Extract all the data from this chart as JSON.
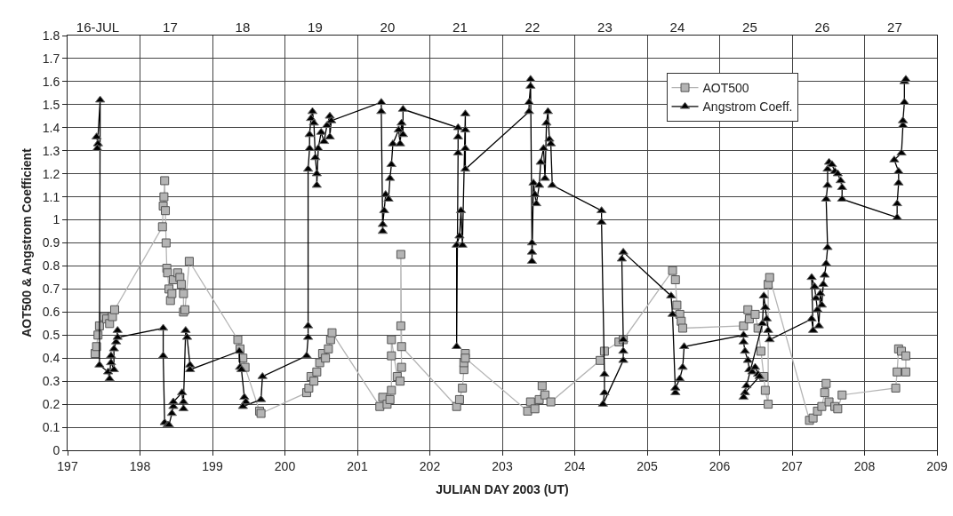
{
  "chart_data": {
    "type": "line",
    "xlabel": "JULIAN DAY 2003 (UT)",
    "ylabel": "AOT500 & Angstrom Coefficient",
    "xlim": [
      197,
      209
    ],
    "xticks": [
      197,
      198,
      199,
      200,
      201,
      202,
      203,
      204,
      205,
      206,
      207,
      208,
      209
    ],
    "x2lim": [
      "--07-16T00:00",
      "--07-28T00:00"
    ],
    "x2ticks": [
      {
        "value": "--07-16T10:00",
        "label": "16-JUL"
      },
      {
        "value": "--07-17T10:00",
        "label": "17"
      },
      {
        "value": "--07-18T10:00",
        "label": "18"
      },
      {
        "value": "--07-19T10:00",
        "label": "19"
      },
      {
        "value": "--07-20T10:00",
        "label": "20"
      },
      {
        "value": "--07-21T10:00",
        "label": "21"
      },
      {
        "value": "--07-22T10:00",
        "label": "22"
      },
      {
        "value": "--07-23T10:00",
        "label": "23"
      },
      {
        "value": "--07-24T10:00",
        "label": "24"
      },
      {
        "value": "--07-25T10:00",
        "label": "25"
      },
      {
        "value": "--07-26T10:00",
        "label": "26"
      },
      {
        "value": "--07-27T10:00",
        "label": "27"
      }
    ],
    "ylim": [
      0,
      1.8
    ],
    "yticks": [
      0,
      0.1,
      0.2,
      0.3,
      0.4,
      0.5,
      0.6,
      0.7,
      0.8,
      0.9,
      1,
      1.1,
      1.2,
      1.3,
      1.4,
      1.5,
      1.6,
      1.7,
      1.8
    ],
    "grid": true,
    "legend": "top right",
    "line_style": "solid",
    "series": [
      {
        "name": "AOT500",
        "color": "#b4b4b4",
        "marker": "square",
        "x": [
          197.38,
          197.4,
          197.42,
          197.44,
          197.5,
          197.54,
          197.58,
          197.62,
          197.65,
          198.31,
          198.32,
          198.33,
          198.34,
          198.35,
          198.36,
          198.37,
          198.38,
          198.4,
          198.42,
          198.44,
          198.46,
          198.52,
          198.55,
          198.57,
          198.6,
          198.6,
          198.62,
          198.68,
          199.35,
          199.38,
          199.42,
          199.45,
          199.65,
          199.67,
          200.3,
          200.33,
          200.36,
          200.4,
          200.44,
          200.48,
          200.52,
          200.56,
          200.6,
          200.63,
          200.65,
          201.31,
          201.35,
          201.41,
          201.45,
          201.47,
          201.47,
          201.47,
          201.55,
          201.59,
          201.61,
          201.6,
          201.6,
          201.61,
          202.37,
          202.41,
          202.45,
          202.47,
          202.47,
          202.49,
          202.49,
          203.35,
          203.39,
          203.45,
          203.51,
          203.55,
          203.59,
          203.67,
          204.35,
          204.41,
          204.61,
          204.67,
          205.35,
          205.39,
          205.41,
          205.45,
          205.47,
          205.49,
          206.33,
          206.39,
          206.41,
          206.49,
          206.53,
          206.57,
          206.61,
          206.63,
          206.67,
          206.67,
          206.69,
          207.24,
          207.29,
          207.35,
          207.41,
          207.45,
          207.47,
          207.51,
          207.59,
          207.63,
          207.69,
          208.43,
          208.45,
          208.47,
          208.51,
          208.57,
          208.57
        ],
        "values": [
          0.42,
          0.45,
          0.5,
          0.54,
          0.58,
          0.57,
          0.55,
          0.58,
          0.61,
          0.97,
          1.06,
          1.1,
          1.17,
          1.04,
          0.9,
          0.79,
          0.77,
          0.7,
          0.65,
          0.68,
          0.74,
          0.77,
          0.75,
          0.72,
          0.68,
          0.6,
          0.61,
          0.82,
          0.48,
          0.44,
          0.4,
          0.36,
          0.17,
          0.16,
          0.25,
          0.27,
          0.32,
          0.3,
          0.34,
          0.38,
          0.42,
          0.4,
          0.44,
          0.48,
          0.51,
          0.19,
          0.23,
          0.2,
          0.22,
          0.26,
          0.41,
          0.48,
          0.32,
          0.3,
          0.36,
          0.54,
          0.85,
          0.45,
          0.19,
          0.22,
          0.27,
          0.35,
          0.38,
          0.42,
          0.4,
          0.17,
          0.21,
          0.18,
          0.22,
          0.28,
          0.24,
          0.21,
          0.39,
          0.43,
          0.47,
          0.48,
          0.78,
          0.74,
          0.63,
          0.59,
          0.56,
          0.53,
          0.54,
          0.61,
          0.57,
          0.59,
          0.53,
          0.43,
          0.32,
          0.26,
          0.2,
          0.72,
          0.75,
          0.13,
          0.14,
          0.17,
          0.19,
          0.25,
          0.29,
          0.21,
          0.19,
          0.18,
          0.24,
          0.27,
          0.34,
          0.44,
          0.43,
          0.41,
          0.34
        ]
      },
      {
        "name": "Angstrom Coeff.",
        "color": "#000000",
        "marker": "triangle",
        "x": [
          197.4,
          197.42,
          197.41,
          197.45,
          197.44,
          197.56,
          197.58,
          197.6,
          197.6,
          197.64,
          197.64,
          197.67,
          197.69,
          197.69,
          198.32,
          198.32,
          198.34,
          198.38,
          198.4,
          198.44,
          198.46,
          198.46,
          198.58,
          198.6,
          198.6,
          198.63,
          198.65,
          198.69,
          198.69,
          199.37,
          199.38,
          199.4,
          199.44,
          199.46,
          199.42,
          199.67,
          199.69,
          200.3,
          200.32,
          200.32,
          200.32,
          200.34,
          200.34,
          200.36,
          200.38,
          200.4,
          200.42,
          200.44,
          200.44,
          200.46,
          200.5,
          200.54,
          200.58,
          200.62,
          200.62,
          200.64,
          201.33,
          201.33,
          201.35,
          201.35,
          201.37,
          201.39,
          201.43,
          201.45,
          201.47,
          201.49,
          201.57,
          201.59,
          201.61,
          201.63,
          201.63,
          202.39,
          202.39,
          202.39,
          202.37,
          202.37,
          202.41,
          202.43,
          202.45,
          202.49,
          202.49,
          202.49,
          202.49,
          203.37,
          203.37,
          203.39,
          203.39,
          203.41,
          203.41,
          203.41,
          203.43,
          203.45,
          203.47,
          203.51,
          203.53,
          203.57,
          203.59,
          203.61,
          203.63,
          203.65,
          203.67,
          203.69,
          204.37,
          204.37,
          204.41,
          204.41,
          204.39,
          204.67,
          204.67,
          204.67,
          204.65,
          204.67,
          205.33,
          205.35,
          205.39,
          205.39,
          205.45,
          205.49,
          205.51,
          206.33,
          206.33,
          206.35,
          206.39,
          206.41,
          206.45,
          206.49,
          206.53,
          206.55,
          206.35,
          206.37,
          206.33,
          206.59,
          206.61,
          206.63,
          206.65,
          206.67,
          206.69,
          207.27,
          207.29,
          207.27,
          207.31,
          207.33,
          207.35,
          207.37,
          207.39,
          207.41,
          207.43,
          207.45,
          207.47,
          207.49,
          207.47,
          207.49,
          207.49,
          207.51,
          207.55,
          207.59,
          207.63,
          207.67,
          207.69,
          207.69,
          208.45,
          208.45,
          208.47,
          208.47,
          208.41,
          208.51,
          208.53,
          208.53,
          208.55,
          208.55,
          208.57
        ],
        "values": [
          1.36,
          1.33,
          1.31,
          1.52,
          0.37,
          0.34,
          0.31,
          0.41,
          0.38,
          0.35,
          0.44,
          0.47,
          0.52,
          0.49,
          0.53,
          0.41,
          0.12,
          0.11,
          0.11,
          0.16,
          0.19,
          0.21,
          0.25,
          0.18,
          0.21,
          0.52,
          0.49,
          0.37,
          0.35,
          0.43,
          0.36,
          0.35,
          0.23,
          0.21,
          0.19,
          0.22,
          0.32,
          0.41,
          0.49,
          0.54,
          1.22,
          1.31,
          1.37,
          1.44,
          1.47,
          1.42,
          1.27,
          1.2,
          1.15,
          1.31,
          1.38,
          1.34,
          1.41,
          1.45,
          1.36,
          1.43,
          1.51,
          1.47,
          0.95,
          0.98,
          1.04,
          1.11,
          1.09,
          1.18,
          1.24,
          1.33,
          1.39,
          1.33,
          1.42,
          1.37,
          1.48,
          1.4,
          1.36,
          1.29,
          0.45,
          0.89,
          0.93,
          1.04,
          0.89,
          1.46,
          1.39,
          1.31,
          1.22,
          1.47,
          1.51,
          1.58,
          1.61,
          0.9,
          0.86,
          0.82,
          1.16,
          1.11,
          1.07,
          1.15,
          1.25,
          1.31,
          1.18,
          1.42,
          1.47,
          1.35,
          1.33,
          1.15,
          1.04,
          0.99,
          0.33,
          0.25,
          0.2,
          0.39,
          0.43,
          0.48,
          0.83,
          0.86,
          0.67,
          0.59,
          0.25,
          0.27,
          0.31,
          0.36,
          0.45,
          0.5,
          0.47,
          0.43,
          0.39,
          0.35,
          0.34,
          0.36,
          0.33,
          0.32,
          0.25,
          0.28,
          0.23,
          0.55,
          0.67,
          0.62,
          0.57,
          0.52,
          0.48,
          0.57,
          0.52,
          0.75,
          0.71,
          0.66,
          0.61,
          0.54,
          0.68,
          0.63,
          0.72,
          0.76,
          0.81,
          0.88,
          1.09,
          1.15,
          1.22,
          1.25,
          1.24,
          1.21,
          1.2,
          1.17,
          1.14,
          1.09,
          1.01,
          1.07,
          1.16,
          1.21,
          1.26,
          1.29,
          1.41,
          1.43,
          1.51,
          1.6,
          1.61
        ]
      }
    ]
  }
}
